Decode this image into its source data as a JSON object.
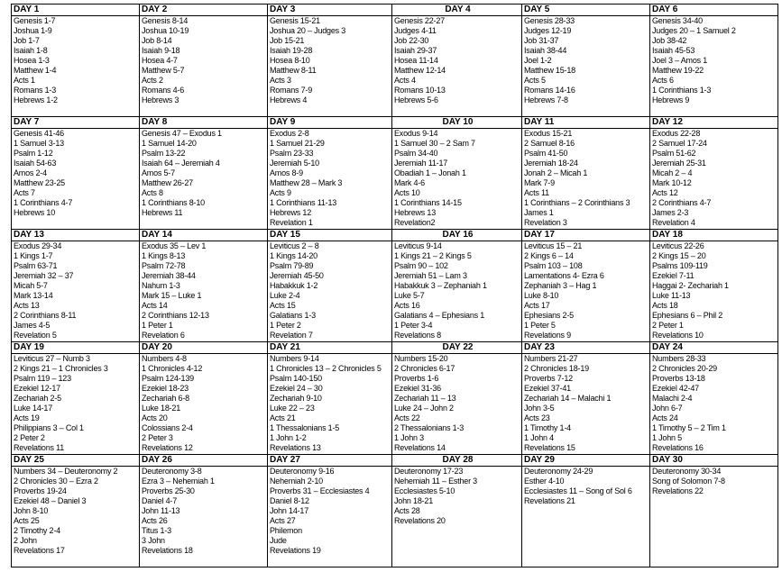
{
  "days": [
    {
      "title": "DAY 1",
      "readings": [
        "Genesis 1-7",
        "Joshua 1-9",
        "Job 1-7",
        "Isaiah 1-8",
        "Hosea 1-3",
        "Matthew 1-4",
        "Acts 1",
        "Romans 1-3",
        "Hebrews 1-2"
      ]
    },
    {
      "title": "DAY 2",
      "readings": [
        "Genesis 8-14",
        "Joshua 10-19",
        "Job 8-14",
        "Isaiah 9-18",
        "Hosea 4-7",
        "Matthew 5-7",
        "Acts 2",
        "Romans 4-6",
        "Hebrews 3"
      ]
    },
    {
      "title": "DAY 3",
      "readings": [
        "Genesis 15-21",
        "Joshua 20 – Judges 3",
        "Job 15-21",
        "Isaiah 19-28",
        "Hosea 8-10",
        "Matthew 8-11",
        "Acts 3",
        "Romans 7-9",
        "Hebrews 4"
      ]
    },
    {
      "title": "DAY 4",
      "readings": [
        "Genesis 22-27",
        "Judges 4-11",
        "Job 22-30",
        "Isaiah 29-37",
        "Hosea 11-14",
        "Matthew 12-14",
        "Acts 4",
        "Romans 10-13",
        "Hebrews 5-6"
      ]
    },
    {
      "title": "DAY 5",
      "readings": [
        "Genesis 28-33",
        "Judges 12-19",
        "Job 31-37",
        "Isaiah 38-44",
        "Joel 1-2",
        "Matthew 15-18",
        "Acts 5",
        "Romans 14-16",
        "Hebrews 7-8"
      ]
    },
    {
      "title": "DAY 6",
      "readings": [
        "Genesis 34-40",
        "Judges 20 – 1 Samuel 2",
        "Job 38-42",
        "Isaiah 45-53",
        "Joel 3 – Amos 1",
        "Matthew 19-22",
        "Acts 6",
        "1 Corinthians 1-3",
        "Hebrews 9"
      ]
    },
    {
      "title": "DAY 7",
      "readings": [
        "Genesis 41-46",
        "1 Samuel 3-13",
        "Psalm 1-12",
        "Isaiah 54-63",
        "Amos 2-4",
        "Matthew 23-25",
        "Acts 7",
        "1 Corinthians 4-7",
        "Hebrews 10"
      ]
    },
    {
      "title": "DAY 8",
      "readings": [
        "Genesis 47 – Exodus 1",
        "1 Samuel 14-20",
        "Psalm 13-22",
        "Isaiah 64 – Jeremiah 4",
        "Amos 5-7",
        "Matthew 26-27",
        "Acts 8",
        "1 Corinthians 8-10",
        "Hebrews 11"
      ]
    },
    {
      "title": "DAY 9",
      "readings": [
        "Exodus 2-8",
        "1 Samuel 21-29",
        "Psalm 23-33",
        "Jeremiah 5-10",
        "Amos 8-9",
        "Matthew 28 – Mark 3",
        "Acts 9",
        "1 Corinthians 11-13",
        "Hebrews 12",
        "Revelation 1"
      ]
    },
    {
      "title": "DAY 10",
      "readings": [
        "Exodus 9-14",
        "1 Samuel 30 – 2 Sam 7",
        "Psalm 34-40",
        "Jeremiah 11-17",
        "Obadiah 1 – Jonah 1",
        "Mark 4-6",
        "Acts 10",
        "1 Corinthians 14-15",
        "Hebrews 13",
        "Revelation2"
      ]
    },
    {
      "title": "DAY 11",
      "readings": [
        "Exodus 15-21",
        "2 Samuel 8-16",
        "Psalm 41-50",
        "Jeremiah 18-24",
        "Jonah 2 – Micah 1",
        "Mark 7-9",
        "Acts 11",
        "1 Corinthians – 2 Corinthians 3",
        "James 1",
        "Revelation 3"
      ]
    },
    {
      "title": "DAY 12",
      "readings": [
        "Exodus 22-28",
        "2 Samuel 17-24",
        "Psalm 51-62",
        "Jeremiah 25-31",
        "Micah 2 – 4",
        "Mark 10-12",
        "Acts 12",
        "2 Corinthians 4-7",
        "James 2-3",
        "Revelation 4"
      ]
    },
    {
      "title": "DAY 13",
      "readings": [
        "Exodus 29-34",
        "1 Kings 1-7",
        "Psalm 63-71",
        "Jeremiah 32 – 37",
        "Micah 5-7",
        "Mark 13-14",
        "Acts 13",
        "2 Corinthians 8-11",
        "James 4-5",
        "Revelation 5"
      ]
    },
    {
      "title": "DAY 14",
      "readings": [
        "Exodus 35 – Lev 1",
        "1 Kings 8-13",
        "Psalm 72-78",
        "Jeremiah 38-44",
        "Nahum 1-3",
        "Mark 15 – Luke 1",
        "Acts 14",
        "2 Corinthians 12-13",
        "1 Peter 1",
        "Revelation 6"
      ]
    },
    {
      "title": "DAY 15",
      "readings": [
        "Leviticus 2 – 8",
        "1 Kings 14-20",
        "Psalm 79-89",
        "Jeremiah 45-50",
        "Habakkuk 1-2",
        "Luke 2-4",
        "Acts 15",
        "Galatians 1-3",
        "1 Peter 2",
        "Revelation 7"
      ]
    },
    {
      "title": "DAY 16",
      "readings": [
        "Leviticus 9-14",
        "1 Kings 21 – 2 Kings 5",
        "Psalm 90 – 102",
        "Jeremiah 51 – Lam 3",
        "Habakkuk 3 – Zephaniah 1",
        "Luke 5-7",
        "Acts 16",
        "Galatians 4 – Ephesians 1",
        "1 Peter 3-4",
        "Revelations 8"
      ]
    },
    {
      "title": "DAY 17",
      "readings": [
        "Leviticus 15 – 21",
        "2 Kings 6 – 14",
        "Psalm 103 – 108",
        "Lamentations 4- Ezra 6",
        "Zephaniah 3 – Hag 1",
        "Luke 8-10",
        "Acts 17",
        "Ephesians 2-5",
        "1 Peter 5",
        "Revelations 9"
      ]
    },
    {
      "title": "DAY 18",
      "readings": [
        "Leviticus 22-26",
        "2 Kings 15 – 20",
        "Psalms 109-119",
        "Ezekiel 7-11",
        "Haggai 2- Zechariah 1",
        "Luke 11-13",
        "Acts 18",
        "Ephesians 6 – Phil 2",
        "2 Peter 1",
        "Revelations 10"
      ]
    },
    {
      "title": "DAY 19",
      "readings": [
        "Leviticus 27 – Numb 3",
        "2 Kings 21 – 1 Chronicles 3",
        "Psalm 119 – 123",
        "Ezekiel 12-17",
        "Zechariah 2-5",
        "Luke 14-17",
        "Acts 19",
        "Philippians 3 – Col 1",
        "2 Peter 2",
        "Revelations 11"
      ]
    },
    {
      "title": "DAY 20",
      "readings": [
        "Numbers 4-8",
        "1 Chronicles 4-12",
        "Psalm 124-139",
        "Ezekiel 18-23",
        "Zechariah 6-8",
        "Luke 18-21",
        "Acts 20",
        "Colossians 2-4",
        "2 Peter 3",
        "Revelations 12"
      ]
    },
    {
      "title": "DAY 21",
      "readings": [
        "Numbers 9-14",
        "1 Chronicles 13 – 2 Chronicles 5",
        "Psalm 140-150",
        "Ezekiel 24 – 30",
        "Zechariah 9-10",
        "Luke 22 – 23",
        "Acts 21",
        "1 Thessalonians 1-5",
        "1 John 1-2",
        "Revelations 13"
      ]
    },
    {
      "title": "DAY 22",
      "readings": [
        "Numbers 15-20",
        "2 Chronicles 6-17",
        "Proverbs 1-6",
        "Ezekiel 31-36",
        "Zechariah 11 – 13",
        "Luke 24 – John 2",
        "Acts 22",
        "2 Thessalonians 1-3",
        "1 John 3",
        "Revelations 14"
      ]
    },
    {
      "title": "DAY 23",
      "readings": [
        "Numbers 21-27",
        "2 Chronicles 18-19",
        "Proverbs 7-12",
        "Ezekiel 37-41",
        "Zechariah 14 – Malachi 1",
        "John 3-5",
        "Acts 23",
        "1 Timothy 1-4",
        "1 John 4",
        "Revelations 15"
      ]
    },
    {
      "title": "DAY 24",
      "readings": [
        "Numbers 28-33",
        "2 Chronicles 20-29",
        "Proverbs 13-18",
        "Ezekiel 42-47",
        "Malachi 2-4",
        "John 6-7",
        "Acts 24",
        "1 Timothy 5 – 2 Tim 1",
        "1 John 5",
        "Revelations 16"
      ]
    },
    {
      "title": "DAY 25",
      "readings": [
        "Numbers 34 – Deuteronomy 2",
        "2 Chronicles 30 – Ezra 2",
        "Proverbs 19-24",
        "Ezekiel 48 – Daniel 3",
        "John 8-10",
        "Acts 25",
        "2 Timothy 2-4",
        "2 John",
        "Revelations 17"
      ]
    },
    {
      "title": "DAY 26",
      "readings": [
        "Deuteronomy 3-8",
        "Ezra 3 – Nehemiah 1",
        "Proverbs 25-30",
        "Daniel 4-7",
        "John 11-13",
        "Acts 26",
        "Titus 1-3",
        "3 John",
        "Revelations 18"
      ]
    },
    {
      "title": "DAY 27",
      "readings": [
        "Deuteronomy 9-16",
        "Nehemiah 2-10",
        "Proverbs 31 – Ecclesiastes 4",
        "Daniel 8-12",
        "John 14-17",
        "Acts 27",
        "Philemon",
        "Jude",
        "Revelations 19"
      ]
    },
    {
      "title": "DAY 28",
      "readings": [
        "Deuteronomy 17-23",
        "Nehemiah 11 – Esther 3",
        "Ecclesiastes 5-10",
        "John 18-21",
        "Acts 28",
        "Revelations 20"
      ]
    },
    {
      "title": "DAY 29",
      "readings": [
        "Deuteronomy 24-29",
        "Esther 4-10",
        "Ecclesiastes 11 – Song of Sol 6",
        "Revelations 21"
      ]
    },
    {
      "title": "DAY 30",
      "readings": [
        "Deuteronomy 30-34",
        "Song of Solomon 7-8",
        "Revelations 22"
      ]
    }
  ]
}
